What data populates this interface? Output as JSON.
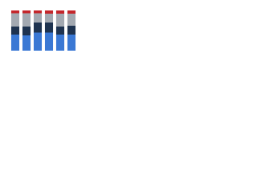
{
  "chart_data": {
    "type": "stacked-bar",
    "categories": [
      null,
      null,
      null,
      null,
      null,
      null
    ],
    "series": [
      {
        "color": "#3a78d4",
        "values": [
          40,
          38,
          45,
          45,
          40,
          40
        ]
      },
      {
        "color": "#1e3350",
        "values": [
          20,
          22,
          25,
          25,
          20,
          22
        ]
      },
      {
        "color": "#a3a9b1",
        "values": [
          33,
          33,
          23,
          22,
          32,
          30
        ]
      },
      {
        "color": "#c4262b",
        "values": [
          7,
          7,
          7,
          8,
          8,
          8
        ]
      }
    ],
    "ylim": [
      0,
      100
    ]
  }
}
